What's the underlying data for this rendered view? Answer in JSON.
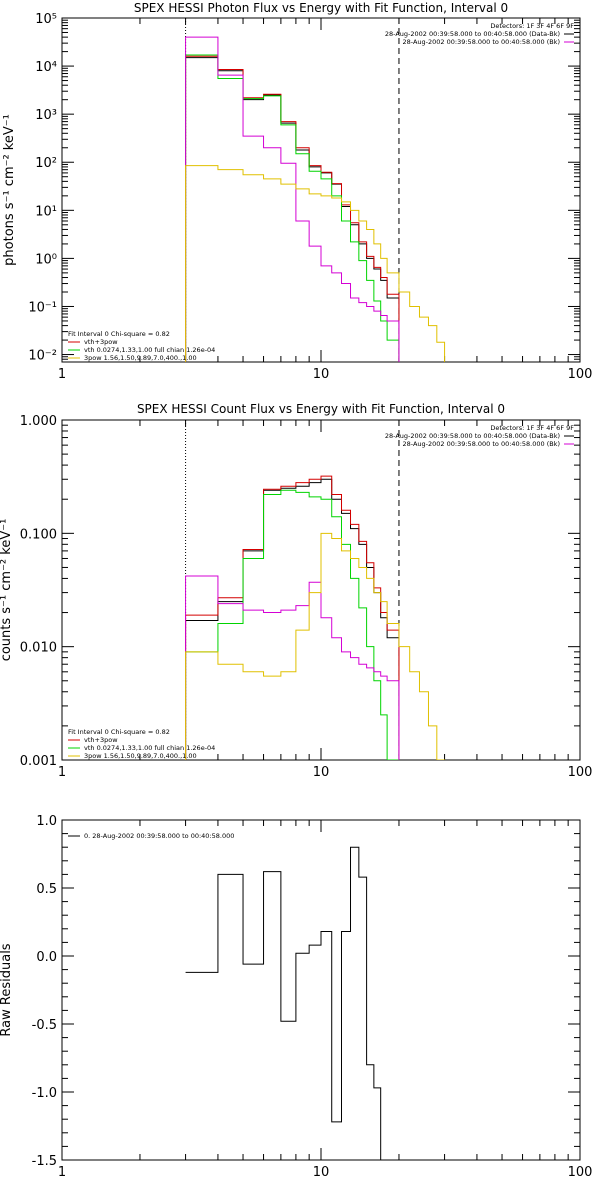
{
  "colors": {
    "black": "#000000",
    "red": "#d40000",
    "green": "#00d400",
    "magenta": "#d400d4",
    "yellow": "#e0c000"
  },
  "chart_data": [
    {
      "type": "line",
      "title": "SPEX HESSI Photon Flux vs Energy with Fit Function, Interval 0",
      "xlabel": "",
      "ylabel": "photons s⁻¹ cm⁻² keV⁻¹",
      "xscale": "log",
      "yscale": "log",
      "xlim": [
        1,
        100
      ],
      "ylim": [
        0.007,
        100000
      ],
      "x_ticks": [
        "1",
        "10",
        "100"
      ],
      "y_ticks": [
        "10⁻²",
        "10⁻¹",
        "10⁰",
        "10¹",
        "10²",
        "10³",
        "10⁴",
        "10⁵"
      ],
      "vlines": [
        {
          "x": 3,
          "style": "dotted"
        },
        {
          "x": 20,
          "style": "dashed"
        }
      ],
      "edges": [
        3,
        4,
        5,
        6,
        7,
        8,
        9,
        10,
        11,
        12,
        13,
        14,
        15,
        16,
        17,
        18,
        20,
        22,
        24,
        26,
        28,
        30
      ],
      "series": [
        {
          "color_key": "black",
          "values": [
            15000,
            8000,
            2000,
            2500,
            650,
            180,
            80,
            60,
            35,
            12,
            5,
            2,
            1,
            0.6,
            0.35,
            0.15
          ]
        },
        {
          "color_key": "red",
          "values": [
            16000,
            8500,
            2200,
            2600,
            700,
            200,
            85,
            62,
            36,
            13,
            5.5,
            2.2,
            1.1,
            0.65,
            0.4,
            0.18
          ]
        },
        {
          "color_key": "green",
          "values": [
            17000,
            5500,
            2100,
            2400,
            600,
            150,
            65,
            45,
            20,
            6,
            2.2,
            0.9,
            0.35,
            0.13,
            0.05,
            0.02
          ]
        },
        {
          "color_key": "magenta",
          "values": [
            40000,
            6500,
            350,
            200,
            95,
            6,
            1.8,
            0.7,
            0.5,
            0.3,
            0.15,
            0.12,
            0.1,
            0.08,
            0.065,
            0.05
          ]
        },
        {
          "color_key": "yellow",
          "values": [
            85,
            70,
            55,
            45,
            35,
            28,
            22,
            20,
            18,
            15,
            10,
            6,
            4,
            2,
            1,
            0.5,
            0.2,
            0.1,
            0.06,
            0.04,
            0.018
          ]
        }
      ],
      "legend_left": {
        "header": "Fit Interval 0   Chi-square = 0.82",
        "items": [
          {
            "color_key": "red",
            "label": "vth+3pow"
          },
          {
            "color_key": "green",
            "label": "vth 0.0274,1.33,1.00  full chian 1.26e-04"
          },
          {
            "color_key": "yellow",
            "label": "3pow 1.56,1.50,9.89,7.0,400.,1.00"
          }
        ]
      },
      "legend_right": {
        "header": "Detectors: 1F 3F 4F 6F 9F",
        "items": [
          {
            "color_key": "black",
            "label": "28-Aug-2002 00:39:58.000 to 00:40:58.000 (Data-Bk)"
          },
          {
            "color_key": "magenta",
            "label": "28-Aug-2002 00:39:58.000 to 00:40:58.000 (Bk)"
          }
        ]
      }
    },
    {
      "type": "line",
      "title": "SPEX HESSI Count Flux vs Energy with Fit Function, Interval 0",
      "xlabel": "",
      "ylabel": "counts s⁻¹ cm⁻² keV⁻¹",
      "xscale": "log",
      "yscale": "log",
      "xlim": [
        1,
        100
      ],
      "ylim": [
        0.001,
        1
      ],
      "x_ticks": [
        "1",
        "10",
        "100"
      ],
      "y_ticks": [
        "0.001",
        "0.010",
        "0.100",
        "1.000"
      ],
      "vlines": [
        {
          "x": 3,
          "style": "dotted"
        },
        {
          "x": 20,
          "style": "dashed"
        }
      ],
      "edges": [
        3,
        4,
        5,
        6,
        7,
        8,
        9,
        10,
        11,
        12,
        13,
        14,
        15,
        16,
        17,
        18,
        20,
        22,
        24,
        26,
        28,
        30
      ],
      "series": [
        {
          "color_key": "black",
          "values": [
            0.017,
            0.025,
            0.07,
            0.24,
            0.25,
            0.26,
            0.28,
            0.3,
            0.2,
            0.15,
            0.11,
            0.08,
            0.05,
            0.03,
            0.018,
            0.012
          ]
        },
        {
          "color_key": "red",
          "values": [
            0.019,
            0.027,
            0.072,
            0.245,
            0.26,
            0.28,
            0.3,
            0.32,
            0.22,
            0.16,
            0.12,
            0.085,
            0.055,
            0.033,
            0.02,
            0.014
          ]
        },
        {
          "color_key": "green",
          "values": [
            0.009,
            0.016,
            0.06,
            0.22,
            0.24,
            0.23,
            0.21,
            0.2,
            0.14,
            0.08,
            0.04,
            0.022,
            0.01,
            0.005,
            0.0025,
            0.001
          ]
        },
        {
          "color_key": "magenta",
          "values": [
            0.042,
            0.024,
            0.021,
            0.02,
            0.021,
            0.023,
            0.037,
            0.018,
            0.012,
            0.009,
            0.008,
            0.007,
            0.0065,
            0.006,
            0.0055,
            0.005
          ]
        },
        {
          "color_key": "yellow",
          "values": [
            0.009,
            0.007,
            0.006,
            0.0055,
            0.006,
            0.014,
            0.03,
            0.1,
            0.09,
            0.07,
            0.06,
            0.05,
            0.04,
            0.03,
            0.025,
            0.016,
            0.01,
            0.006,
            0.004,
            0.002,
            0.001
          ]
        }
      ],
      "legend_left": {
        "header": "Fit Interval 0   Chi-square = 0.82",
        "items": [
          {
            "color_key": "red",
            "label": "vth+3pow"
          },
          {
            "color_key": "green",
            "label": "vth 0.0274,1.33,1.00  full chian 1.26e-04"
          },
          {
            "color_key": "yellow",
            "label": "3pow 1.56,1.50,9.89,7.0,400.,1.00"
          }
        ]
      },
      "legend_right": {
        "header": "Detectors: 1F 3F 4F 6F 9F",
        "items": [
          {
            "color_key": "black",
            "label": "28-Aug-2002 00:39:58.000 to 00:40:58.000 (Data-Bk)"
          },
          {
            "color_key": "magenta",
            "label": "28-Aug-2002 00:39:58.000 to 00:40:58.000 (Bk)"
          }
        ]
      }
    },
    {
      "type": "line",
      "title": "",
      "xlabel": "",
      "ylabel": "Raw Residuals",
      "xscale": "log",
      "yscale": "linear",
      "xlim": [
        1,
        100
      ],
      "ylim": [
        -1.5,
        1.0
      ],
      "x_ticks": [
        "1",
        "10",
        "100"
      ],
      "y_ticks": [
        "-1.5",
        "-1.0",
        "-0.5",
        "0.0",
        "0.5",
        "1.0"
      ],
      "edges": [
        3,
        4,
        5,
        6,
        7,
        8,
        9,
        10,
        11,
        12,
        13,
        14,
        15,
        16,
        17,
        18,
        20
      ],
      "series": [
        {
          "color_key": "black",
          "values": [
            -0.12,
            0.6,
            -0.06,
            0.62,
            -0.48,
            0.02,
            0.08,
            0.18,
            -1.22,
            0.18,
            0.8,
            0.58,
            -0.8,
            -0.97,
            -1.5,
            -1.5
          ]
        }
      ],
      "legend_left": {
        "header": "",
        "items": [
          {
            "color_key": "black",
            "label": "0. 28-Aug-2002 00:39:58.000 to 00:40:58.000"
          }
        ]
      }
    }
  ]
}
